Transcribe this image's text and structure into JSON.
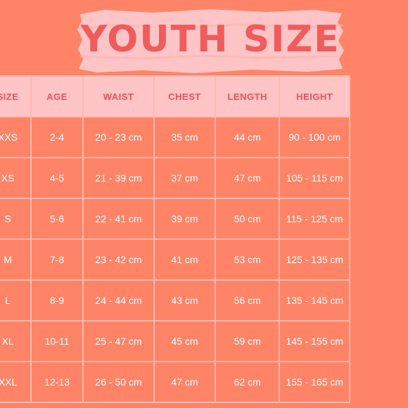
{
  "title": "YOUTH SIZE",
  "table": {
    "headers": [
      "",
      "SIZE",
      "AGE",
      "WAIST",
      "CHEST",
      "LENGTH",
      "HEIGHT"
    ],
    "rows": [
      [
        "",
        "XXS",
        "2-4",
        "20 - 23 cm",
        "35 cm",
        "44 cm",
        "90 - 100 cm"
      ],
      [
        "",
        "XS",
        "4-5",
        "21 - 39 cm",
        "37 cm",
        "47 cm",
        "105 - 115 cm"
      ],
      [
        "",
        "S",
        "5-6",
        "22 - 41 cm",
        "39 cm",
        "50 cm",
        "115 - 125 cm"
      ],
      [
        "",
        "M",
        "7-8",
        "23 - 42 cm",
        "41 cm",
        "53 cm",
        "125 - 135 cm"
      ],
      [
        "",
        "L",
        "8-9",
        "24 - 44 cm",
        "43 cm",
        "56 cm",
        "135 - 145 cm"
      ],
      [
        "",
        "XL",
        "10-11",
        "25 - 47 cm",
        "45 cm",
        "59 cm",
        "145 - 155 cm"
      ],
      [
        "",
        "XXL",
        "12-13",
        "26 - 50 cm",
        "47 cm",
        "62 cm",
        "155 - 165 cm"
      ]
    ]
  },
  "colors": {
    "background": "#ff8467",
    "header_fill": "#ffc4c6",
    "header_text": "#e8525d",
    "cell_text": "#ffffff",
    "grid": "#ffb9ae",
    "title_brush": "#ffc4c6",
    "title_text": "#f05b5b"
  }
}
